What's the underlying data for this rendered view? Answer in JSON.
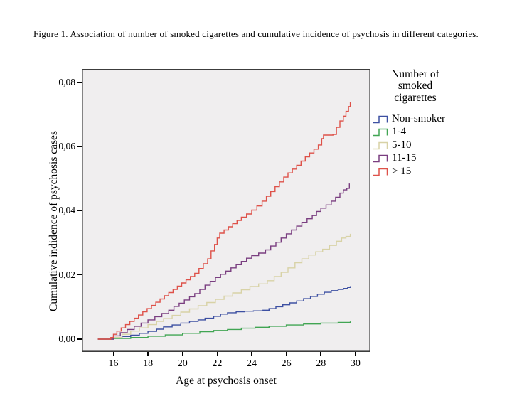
{
  "figure": {
    "caption": "Figure 1. Association of number of smoked cigarettes and cumulative incidence of psychosis in different categories."
  },
  "legend": {
    "title": "Number of smoked cigarettes"
  },
  "chart_data": {
    "type": "line",
    "step": true,
    "title": "",
    "xlabel": "Age at psychosis onset",
    "ylabel": "Cumulative indidence of psychosis cases",
    "xlim": [
      14.17,
      30.87
    ],
    "ylim": [
      -0.004,
      0.0842
    ],
    "x_ticks": [
      16,
      18,
      20,
      22,
      24,
      26,
      28,
      30
    ],
    "x_tick_labels": [
      "16",
      "18",
      "20",
      "22",
      "24",
      "26",
      "28",
      "30"
    ],
    "y_ticks": [
      0,
      0.02,
      0.04,
      0.06,
      0.08
    ],
    "y_tick_labels": [
      "0,00",
      "0,02",
      "0,04",
      "0,06",
      "0,08"
    ],
    "legend_position": "right",
    "grid": false,
    "plot_bg": "#f0eeef",
    "frame_color": "#3c3c3c",
    "series": [
      {
        "name": "Non-smoker",
        "color": "#3d50a2",
        "points": [
          [
            15.1,
            0
          ],
          [
            16.0,
            0.0004
          ],
          [
            16.5,
            0.0008
          ],
          [
            17.0,
            0.0012
          ],
          [
            17.5,
            0.0018
          ],
          [
            18.0,
            0.0024
          ],
          [
            18.5,
            0.0031
          ],
          [
            18.9,
            0.0038
          ],
          [
            19.4,
            0.0044
          ],
          [
            19.9,
            0.005
          ],
          [
            20.4,
            0.0055
          ],
          [
            20.9,
            0.006
          ],
          [
            21.3,
            0.0065
          ],
          [
            21.8,
            0.0071
          ],
          [
            22.2,
            0.0078
          ],
          [
            22.6,
            0.0082
          ],
          [
            23.1,
            0.0085
          ],
          [
            23.6,
            0.0087
          ],
          [
            24.1,
            0.0088
          ],
          [
            24.65,
            0.009
          ],
          [
            25.0,
            0.0095
          ],
          [
            25.4,
            0.0101
          ],
          [
            25.8,
            0.0107
          ],
          [
            26.2,
            0.0113
          ],
          [
            26.6,
            0.0119
          ],
          [
            27.0,
            0.0126
          ],
          [
            27.4,
            0.0133
          ],
          [
            27.8,
            0.014
          ],
          [
            28.2,
            0.0146
          ],
          [
            28.6,
            0.0151
          ],
          [
            29.0,
            0.0155
          ],
          [
            29.3,
            0.0158
          ],
          [
            29.55,
            0.0161
          ],
          [
            29.7,
            0.0165
          ]
        ]
      },
      {
        "name": "1-4",
        "color": "#41a553",
        "points": [
          [
            15.1,
            0
          ],
          [
            16.0,
            0.0002
          ],
          [
            17.0,
            0.0005
          ],
          [
            18.0,
            0.0009
          ],
          [
            19.0,
            0.0013
          ],
          [
            20.0,
            0.0018
          ],
          [
            21.0,
            0.0023
          ],
          [
            21.8,
            0.0027
          ],
          [
            22.6,
            0.003
          ],
          [
            23.4,
            0.0034
          ],
          [
            24.2,
            0.0037
          ],
          [
            25.0,
            0.004
          ],
          [
            26.0,
            0.0044
          ],
          [
            27.0,
            0.0047
          ],
          [
            28.0,
            0.005
          ],
          [
            29.0,
            0.0052
          ],
          [
            29.7,
            0.0055
          ]
        ]
      },
      {
        "name": "5-10",
        "color": "#d8d2a6",
        "points": [
          [
            15.1,
            0
          ],
          [
            16.0,
            0.0005
          ],
          [
            16.5,
            0.0015
          ],
          [
            17.0,
            0.0025
          ],
          [
            17.5,
            0.0035
          ],
          [
            18.0,
            0.0045
          ],
          [
            18.5,
            0.0055
          ],
          [
            18.9,
            0.0064
          ],
          [
            19.4,
            0.0074
          ],
          [
            19.9,
            0.0084
          ],
          [
            20.4,
            0.0094
          ],
          [
            20.9,
            0.0104
          ],
          [
            21.4,
            0.0114
          ],
          [
            21.9,
            0.0124
          ],
          [
            22.4,
            0.0134
          ],
          [
            22.9,
            0.0144
          ],
          [
            23.4,
            0.0154
          ],
          [
            23.9,
            0.0164
          ],
          [
            24.4,
            0.0172
          ],
          [
            24.9,
            0.0182
          ],
          [
            25.3,
            0.0195
          ],
          [
            25.7,
            0.0208
          ],
          [
            26.1,
            0.0222
          ],
          [
            26.5,
            0.0238
          ],
          [
            26.9,
            0.025
          ],
          [
            27.3,
            0.0262
          ],
          [
            27.7,
            0.0272
          ],
          [
            28.1,
            0.028
          ],
          [
            28.5,
            0.0292
          ],
          [
            28.9,
            0.0305
          ],
          [
            29.2,
            0.0315
          ],
          [
            29.45,
            0.032
          ],
          [
            29.7,
            0.0328
          ]
        ]
      },
      {
        "name": "11-15",
        "color": "#7a3e80",
        "points": [
          [
            15.1,
            0
          ],
          [
            16.0,
            0.001
          ],
          [
            16.4,
            0.002
          ],
          [
            16.8,
            0.003
          ],
          [
            17.2,
            0.004
          ],
          [
            17.6,
            0.005
          ],
          [
            18.0,
            0.006
          ],
          [
            18.4,
            0.007
          ],
          [
            18.8,
            0.008
          ],
          [
            19.2,
            0.009
          ],
          [
            19.5,
            0.0102
          ],
          [
            19.8,
            0.0112
          ],
          [
            20.1,
            0.0122
          ],
          [
            20.4,
            0.0132
          ],
          [
            20.7,
            0.0142
          ],
          [
            21.0,
            0.0155
          ],
          [
            21.3,
            0.0168
          ],
          [
            21.6,
            0.018
          ],
          [
            21.9,
            0.0192
          ],
          [
            22.2,
            0.0202
          ],
          [
            22.5,
            0.0212
          ],
          [
            22.8,
            0.0222
          ],
          [
            23.1,
            0.0232
          ],
          [
            23.4,
            0.0242
          ],
          [
            23.7,
            0.0252
          ],
          [
            24.0,
            0.026
          ],
          [
            24.4,
            0.0268
          ],
          [
            24.8,
            0.0278
          ],
          [
            25.1,
            0.029
          ],
          [
            25.4,
            0.0302
          ],
          [
            25.7,
            0.0315
          ],
          [
            26.0,
            0.0328
          ],
          [
            26.3,
            0.034
          ],
          [
            26.6,
            0.0352
          ],
          [
            26.9,
            0.0364
          ],
          [
            27.2,
            0.0375
          ],
          [
            27.5,
            0.0385
          ],
          [
            27.75,
            0.0398
          ],
          [
            28.0,
            0.0408
          ],
          [
            28.3,
            0.0418
          ],
          [
            28.6,
            0.043
          ],
          [
            28.85,
            0.0442
          ],
          [
            29.1,
            0.0455
          ],
          [
            29.3,
            0.0465
          ],
          [
            29.5,
            0.047
          ],
          [
            29.65,
            0.0485
          ]
        ]
      },
      {
        "name": "> 15",
        "color": "#de5149",
        "points": [
          [
            15.1,
            0
          ],
          [
            15.85,
            0.0005
          ],
          [
            16.0,
            0.0015
          ],
          [
            16.2,
            0.0025
          ],
          [
            16.45,
            0.0035
          ],
          [
            16.7,
            0.0045
          ],
          [
            16.95,
            0.0055
          ],
          [
            17.2,
            0.0065
          ],
          [
            17.45,
            0.0075
          ],
          [
            17.7,
            0.0085
          ],
          [
            17.95,
            0.0095
          ],
          [
            18.2,
            0.0105
          ],
          [
            18.45,
            0.0115
          ],
          [
            18.7,
            0.0125
          ],
          [
            18.95,
            0.0135
          ],
          [
            19.2,
            0.0145
          ],
          [
            19.45,
            0.0155
          ],
          [
            19.7,
            0.0165
          ],
          [
            19.95,
            0.0175
          ],
          [
            20.2,
            0.0185
          ],
          [
            20.45,
            0.0195
          ],
          [
            20.7,
            0.0205
          ],
          [
            20.95,
            0.022
          ],
          [
            21.2,
            0.0235
          ],
          [
            21.45,
            0.025
          ],
          [
            21.65,
            0.0275
          ],
          [
            21.85,
            0.0295
          ],
          [
            22.0,
            0.0315
          ],
          [
            22.15,
            0.033
          ],
          [
            22.4,
            0.034
          ],
          [
            22.65,
            0.035
          ],
          [
            22.9,
            0.036
          ],
          [
            23.15,
            0.037
          ],
          [
            23.4,
            0.038
          ],
          [
            23.7,
            0.039
          ],
          [
            24.0,
            0.0402
          ],
          [
            24.3,
            0.0415
          ],
          [
            24.6,
            0.043
          ],
          [
            24.85,
            0.0445
          ],
          [
            25.1,
            0.046
          ],
          [
            25.35,
            0.0475
          ],
          [
            25.6,
            0.049
          ],
          [
            25.85,
            0.0505
          ],
          [
            26.1,
            0.0518
          ],
          [
            26.35,
            0.053
          ],
          [
            26.6,
            0.0542
          ],
          [
            26.85,
            0.0555
          ],
          [
            27.1,
            0.0568
          ],
          [
            27.35,
            0.058
          ],
          [
            27.6,
            0.0592
          ],
          [
            27.85,
            0.0605
          ],
          [
            28.05,
            0.0625
          ],
          [
            28.15,
            0.0636
          ],
          [
            28.7,
            0.0638
          ],
          [
            28.9,
            0.066
          ],
          [
            29.1,
            0.068
          ],
          [
            29.3,
            0.0695
          ],
          [
            29.45,
            0.071
          ],
          [
            29.6,
            0.0725
          ],
          [
            29.7,
            0.074
          ]
        ]
      }
    ]
  }
}
